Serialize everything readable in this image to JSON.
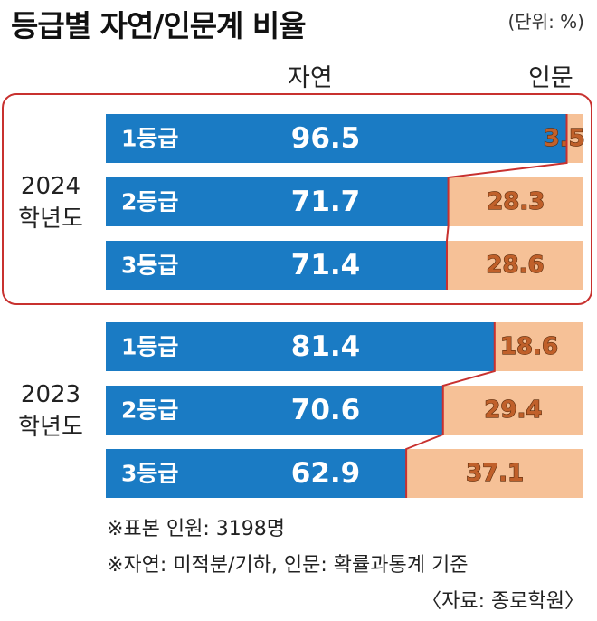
{
  "title": "등급별 자연/인문계 비율",
  "unit": "(단위: %)",
  "column_headers": [
    "자연",
    "인문"
  ],
  "groups": [
    {
      "year": "2024",
      "label2": "학년도"
    },
    {
      "year": "2023",
      "label2": "학년도"
    }
  ],
  "notes": [
    "※표본 인원: 3198명",
    "※자연: 미적분/기하, 인문: 확률과통계 기준"
  ],
  "source": "〈자료: 종로학원〉",
  "colors": {
    "natural": "#1a7bc4",
    "humanities": "#f6c197",
    "highlight": "#c8312f"
  },
  "chart_data": {
    "type": "bar",
    "stacked": true,
    "orientation": "horizontal",
    "xlim": [
      0,
      100
    ],
    "series": [
      {
        "name": "자연",
        "color": "#1a7bc4"
      },
      {
        "name": "인문",
        "color": "#f6c197"
      }
    ],
    "groups": [
      {
        "year": "2024",
        "rows": [
          {
            "label": "1등급",
            "values": [
              96.5,
              3.5
            ]
          },
          {
            "label": "2등급",
            "values": [
              71.7,
              28.3
            ]
          },
          {
            "label": "3등급",
            "values": [
              71.4,
              28.6
            ]
          }
        ]
      },
      {
        "year": "2023",
        "rows": [
          {
            "label": "1등급",
            "values": [
              81.4,
              18.6
            ]
          },
          {
            "label": "2등급",
            "values": [
              70.6,
              29.4
            ]
          },
          {
            "label": "3등급",
            "values": [
              62.9,
              37.1
            ]
          }
        ]
      }
    ]
  }
}
